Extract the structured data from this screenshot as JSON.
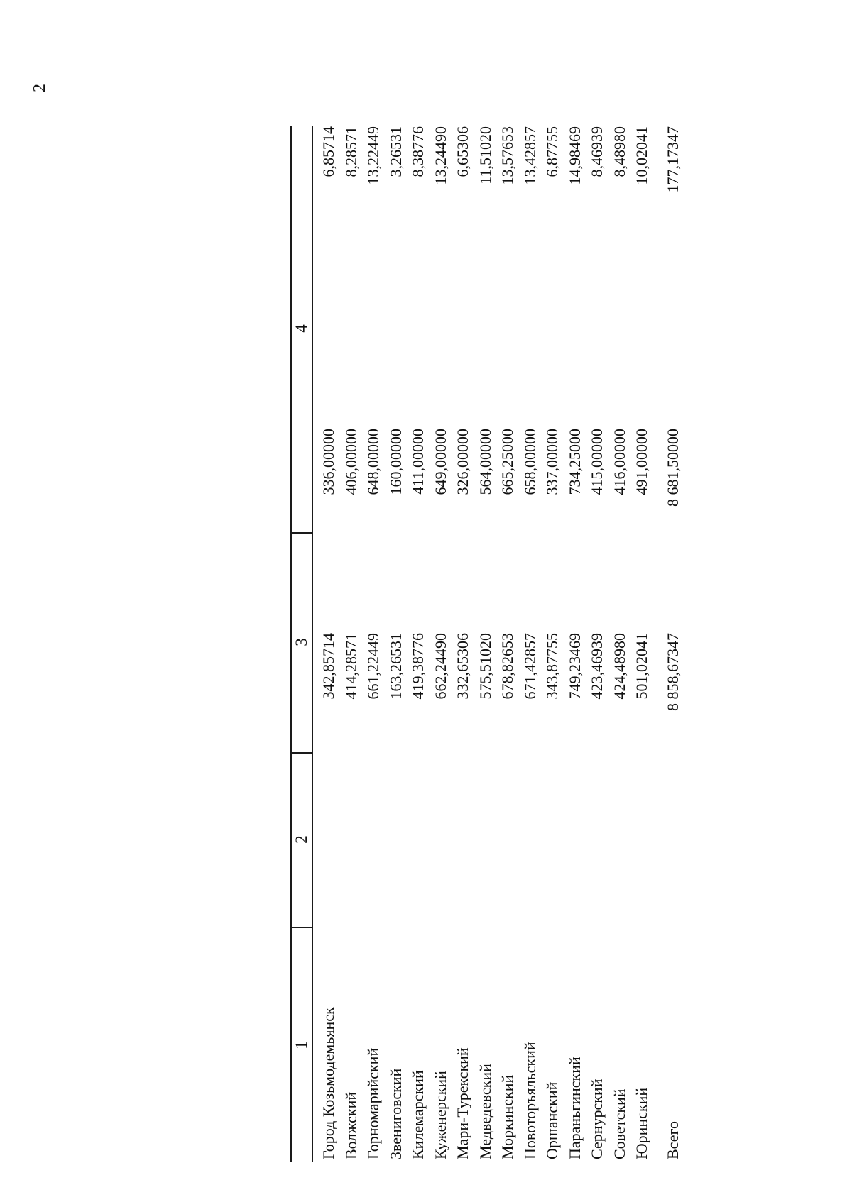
{
  "page": {
    "number": "2"
  },
  "table": {
    "headers": [
      "1",
      "2",
      "3",
      "4"
    ],
    "rows": [
      [
        "Город Козьмодемьянск",
        "342,85714",
        "336,00000",
        "6,85714"
      ],
      [
        "Волжский",
        "414,28571",
        "406,00000",
        "8,28571"
      ],
      [
        "Горномарийский",
        "661,22449",
        "648,00000",
        "13,22449"
      ],
      [
        "Звениговский",
        "163,26531",
        "160,00000",
        "3,26531"
      ],
      [
        "Килемарский",
        "419,38776",
        "411,00000",
        "8,38776"
      ],
      [
        "Куженерский",
        "662,24490",
        "649,00000",
        "13,24490"
      ],
      [
        "Мари-Турекский",
        "332,65306",
        "326,00000",
        "6,65306"
      ],
      [
        "Медведевский",
        "575,51020",
        "564,00000",
        "11,51020"
      ],
      [
        "Моркинский",
        "678,82653",
        "665,25000",
        "13,57653"
      ],
      [
        "Новоторъяльский",
        "671,42857",
        "658,00000",
        "13,42857"
      ],
      [
        "Оршанский",
        "343,87755",
        "337,00000",
        "6,87755"
      ],
      [
        "Параньгинский",
        "749,23469",
        "734,25000",
        "14,98469"
      ],
      [
        "Сернурский",
        "423,46939",
        "415,00000",
        "8,46939"
      ],
      [
        "Советский",
        "424,48980",
        "416,00000",
        "8,48980"
      ],
      [
        "Юринский",
        "501,02041",
        "491,00000",
        "10,02041"
      ]
    ],
    "total": [
      "Всего",
      "8 858,67347",
      "8 681,50000",
      "177,17347"
    ]
  }
}
